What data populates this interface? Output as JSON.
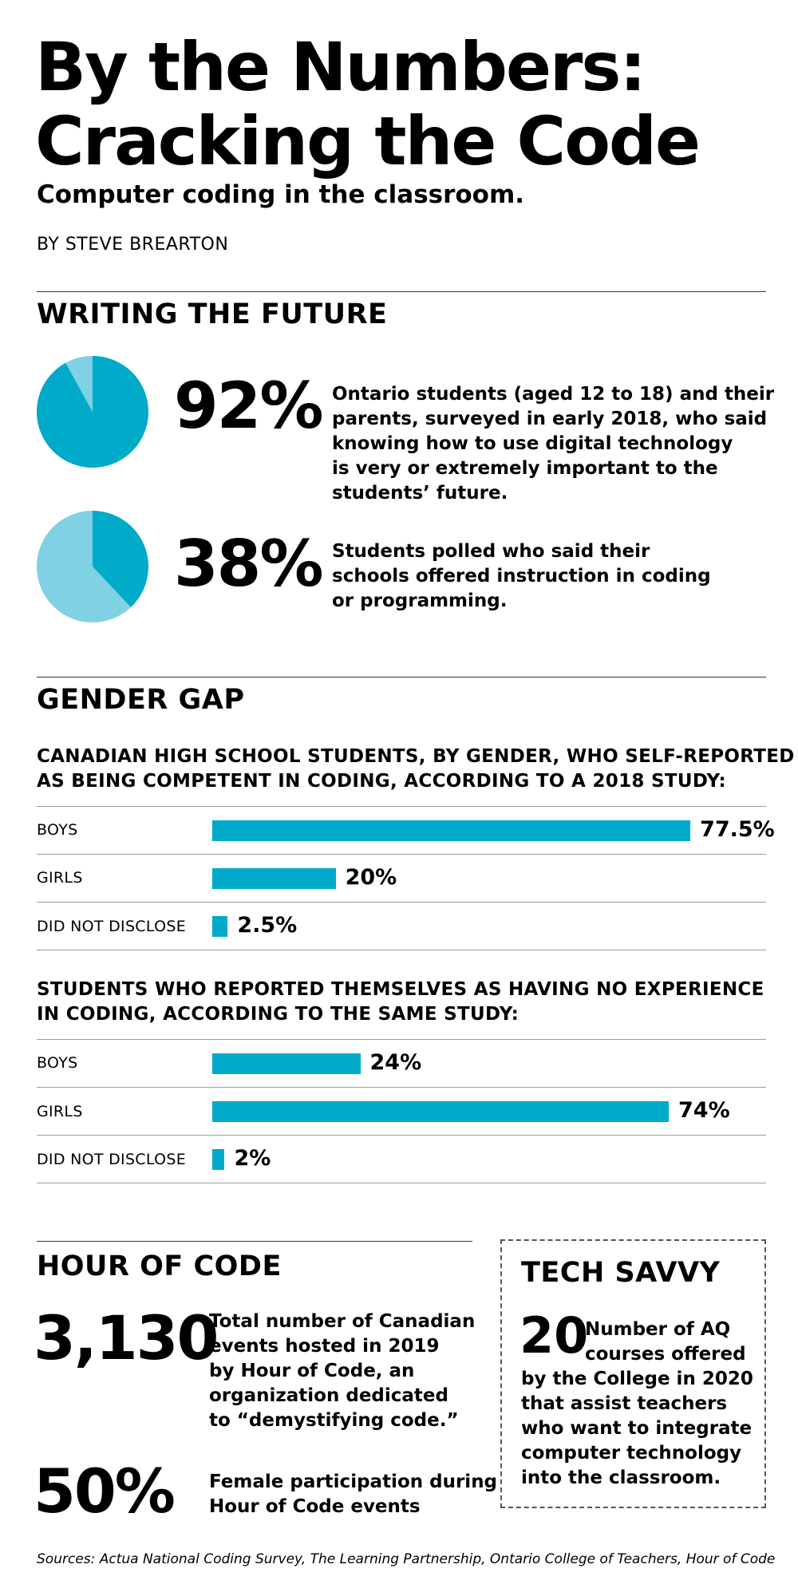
{
  "title_line1": "By the Numbers:",
  "title_line2": "Cracking the Code",
  "subtitle": "Computer coding in the classroom.",
  "byline": "BY STEVE BREARTON",
  "writing": {
    "heading": "WRITING THE FUTURE",
    "stats": [
      {
        "percent": "92%",
        "value": 92,
        "text_lines": [
          "Ontario students (aged 12 to 18) and their",
          "parents, surveyed in early 2018, who said",
          "knowing how to use digital technology",
          "is very or extremely important to the",
          "students’ future."
        ]
      },
      {
        "percent": "38%",
        "value": 38,
        "text_lines": [
          "Students polled who said their",
          "schools offered instruction in coding",
          "or programming."
        ]
      }
    ]
  },
  "gender": {
    "heading": "GENDER GAP"
  },
  "chart_data": [
    {
      "type": "pie",
      "values": [
        92,
        8
      ],
      "colors": [
        "#00aac9",
        "#7fd1e3"
      ]
    },
    {
      "type": "pie",
      "values": [
        38,
        62
      ],
      "colors": [
        "#00aac9",
        "#7fd1e3"
      ]
    },
    {
      "type": "bar",
      "title_lines": [
        "CANADIAN HIGH SCHOOL STUDENTS, BY GENDER, WHO SELF-REPORTED",
        "AS BEING COMPETENT IN CODING, ACCORDING TO A 2018 STUDY:"
      ],
      "categories": [
        "BOYS",
        "GIRLS",
        "DID NOT DISCLOSE"
      ],
      "values": [
        77.5,
        20,
        2.5
      ],
      "labels": [
        "77.5%",
        "20%",
        "2.5%"
      ],
      "color": "#00aac9",
      "orientation": "horizontal"
    },
    {
      "type": "bar",
      "title_lines": [
        "STUDENTS WHO REPORTED THEMSELVES AS HAVING NO EXPERIENCE",
        "IN CODING, ACCORDING TO THE SAME STUDY:"
      ],
      "categories": [
        "BOYS",
        "GIRLS",
        "DID NOT DISCLOSE"
      ],
      "values": [
        24,
        74,
        2
      ],
      "labels": [
        "24%",
        "74%",
        "2%"
      ],
      "color": "#00aac9",
      "orientation": "horizontal"
    }
  ],
  "hour": {
    "heading": "HOUR OF CODE",
    "stats": [
      {
        "number": "3,130",
        "text_lines": [
          "Total number of Canadian",
          "events hosted in 2019",
          "by Hour of Code, an",
          "organization dedicated",
          "to “demystifying code.”"
        ]
      },
      {
        "number": "50%",
        "text_lines": [
          "Female participation during",
          "Hour of Code events"
        ]
      }
    ]
  },
  "tech": {
    "heading": "TECH SAVVY",
    "number": "20",
    "text_lines": [
      "Number of AQ",
      "courses offered",
      "by the College in 2020",
      "that assist teachers",
      "who want to integrate",
      "computer technology",
      "into the classroom."
    ]
  },
  "sources": "Sources: Actua National Coding Survey, The Learning Partnership, Ontario College of Teachers, Hour of Code"
}
